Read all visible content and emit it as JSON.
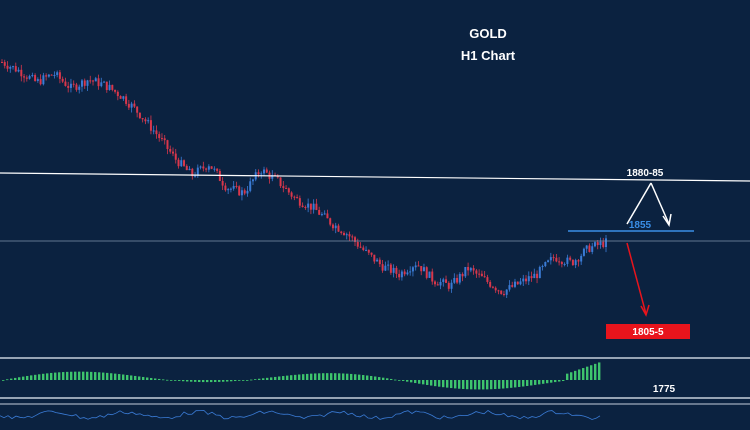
{
  "chart_data": {
    "type": "candlestick",
    "title": "GOLD",
    "subtitle": "H1 Chart",
    "levels": [
      {
        "label": "1880-85",
        "value": 1882
      },
      {
        "label": "1855",
        "value": 1855
      },
      {
        "label": "1805-5",
        "value": 1805
      },
      {
        "label": "1775",
        "value": 1775
      }
    ],
    "price_path": [
      1905,
      1902,
      1898,
      1901,
      1896,
      1899,
      1897,
      1893,
      1887,
      1880,
      1872,
      1866,
      1870,
      1862,
      1860,
      1868,
      1864,
      1858,
      1855,
      1850,
      1846,
      1840,
      1835,
      1832,
      1836,
      1830,
      1828,
      1834,
      1830,
      1826,
      1829,
      1832,
      1838,
      1836,
      1841,
      1843
    ],
    "colors": {
      "background": "#0b2240",
      "bull": "#3a7bd5",
      "bear": "#d9374b",
      "resistance": "#ffffff",
      "support": "#3a8ee6",
      "target_box": "#e8141c",
      "histogram": "#3ec46d"
    }
  }
}
